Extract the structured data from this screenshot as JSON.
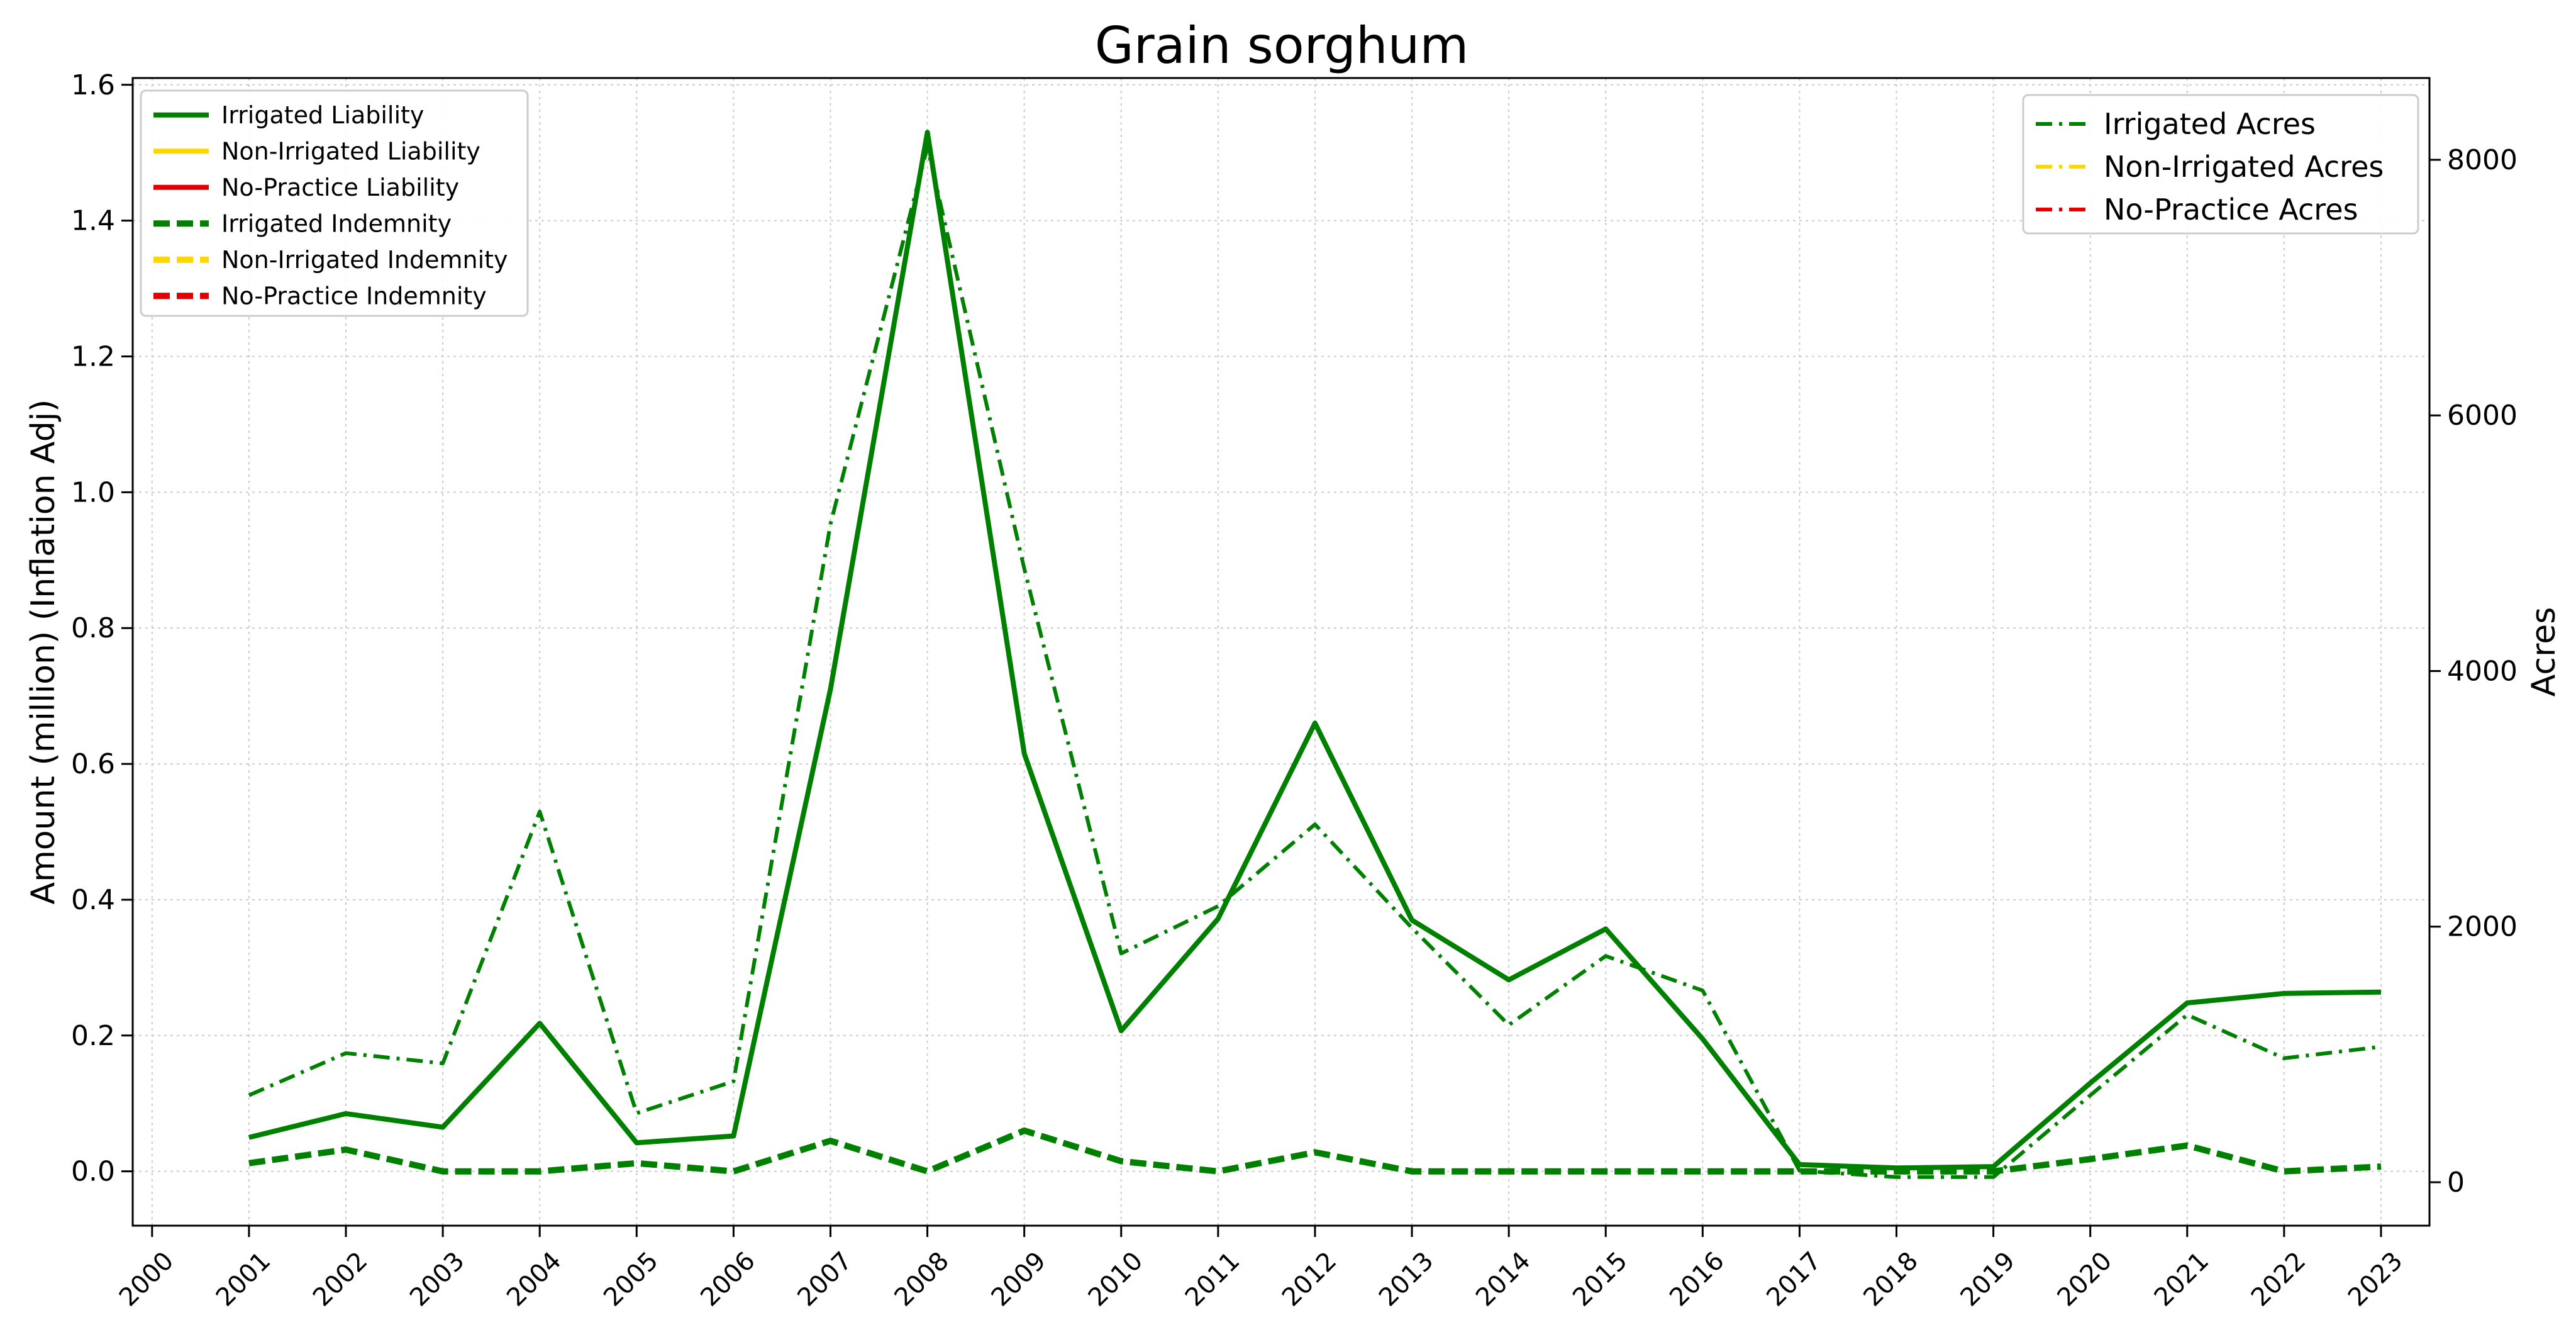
{
  "chart_data": {
    "type": "line",
    "title": "Grain sorghum",
    "xlabel": "",
    "ylabel": "Amount (million) (Inflation Adj)",
    "y2label": "Acres",
    "x_ticks": [
      "2000",
      "2001",
      "2002",
      "2003",
      "2004",
      "2005",
      "2006",
      "2007",
      "2008",
      "2009",
      "2010",
      "2011",
      "2012",
      "2013",
      "2014",
      "2015",
      "2016",
      "2017",
      "2018",
      "2019",
      "2020",
      "2021",
      "2022",
      "2023"
    ],
    "y_ticks": [
      "0.0",
      "0.2",
      "0.4",
      "0.6",
      "0.8",
      "1.0",
      "1.2",
      "1.4",
      "1.6"
    ],
    "y2_ticks": [
      "0",
      "2000",
      "4000",
      "6000",
      "8000"
    ],
    "xlim": [
      1999.8,
      2023.5
    ],
    "ylim": [
      -0.08,
      1.61
    ],
    "y2lim": [
      -340,
      8640
    ],
    "grid": true,
    "series": [
      {
        "name": "Irrigated Liability",
        "axis": "left",
        "style": "solid",
        "color": "#008000",
        "x": [
          2001,
          2002,
          2003,
          2004,
          2005,
          2006,
          2007,
          2008,
          2009,
          2010,
          2011,
          2012,
          2013,
          2014,
          2015,
          2016,
          2017,
          2018,
          2019,
          2020,
          2021,
          2022,
          2023
        ],
        "values": [
          0.05,
          0.085,
          0.065,
          0.218,
          0.042,
          0.052,
          0.71,
          1.53,
          0.615,
          0.207,
          0.372,
          0.66,
          0.37,
          0.282,
          0.357,
          0.195,
          0.01,
          0.005,
          0.007,
          0.13,
          0.248,
          0.262,
          0.264
        ]
      },
      {
        "name": "Irrigated Indemnity",
        "axis": "left",
        "style": "dashed",
        "color": "#008000",
        "x": [
          2001,
          2002,
          2003,
          2004,
          2005,
          2006,
          2007,
          2008,
          2009,
          2010,
          2011,
          2012,
          2013,
          2014,
          2015,
          2016,
          2017,
          2018,
          2019,
          2020,
          2021,
          2022,
          2023
        ],
        "values": [
          0.012,
          0.032,
          0.0,
          0.0,
          0.012,
          0.0,
          0.045,
          0.0,
          0.06,
          0.015,
          0.0,
          0.028,
          0.0,
          0.0,
          0.0,
          0.0,
          0.0,
          0.0,
          0.0,
          0.018,
          0.038,
          0.0,
          0.007
        ]
      },
      {
        "name": "Irrigated Acres",
        "axis": "right",
        "style": "dashdot",
        "color": "#008000",
        "x": [
          2001,
          2002,
          2003,
          2004,
          2005,
          2006,
          2007,
          2008,
          2009,
          2010,
          2011,
          2012,
          2013,
          2014,
          2015,
          2016,
          2017,
          2018,
          2019,
          2020,
          2021,
          2022,
          2023
        ],
        "values": [
          680,
          1010,
          930,
          2900,
          540,
          790,
          5150,
          8100,
          4800,
          1790,
          2160,
          2800,
          1990,
          1230,
          1770,
          1500,
          90,
          40,
          40,
          680,
          1310,
          970,
          1060
        ]
      }
    ],
    "legend_left": {
      "position": "top-left",
      "entries": [
        {
          "name": "Irrigated Liability",
          "color": "#008000",
          "style": "solid"
        },
        {
          "name": "Non-Irrigated Liability",
          "color": "#FFD700",
          "style": "solid"
        },
        {
          "name": "No-Practice Liability",
          "color": "#E00000",
          "style": "solid"
        },
        {
          "name": "Irrigated Indemnity",
          "color": "#008000",
          "style": "dashed"
        },
        {
          "name": "Non-Irrigated Indemnity",
          "color": "#FFD700",
          "style": "dashed"
        },
        {
          "name": "No-Practice Indemnity",
          "color": "#E00000",
          "style": "dashed"
        }
      ]
    },
    "legend_right": {
      "position": "top-right",
      "entries": [
        {
          "name": "Irrigated Acres",
          "color": "#008000",
          "style": "dashdot"
        },
        {
          "name": "Non-Irrigated Acres",
          "color": "#FFD700",
          "style": "dashdot"
        },
        {
          "name": "No-Practice Acres",
          "color": "#E00000",
          "style": "dashdot"
        }
      ]
    }
  }
}
